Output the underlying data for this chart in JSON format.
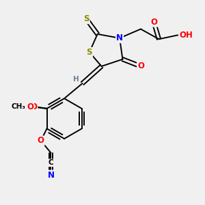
{
  "bg_color": "#f0f0f0",
  "atom_colors": {
    "S": "#8b8b00",
    "N": "#0000ff",
    "O": "#ff0000",
    "C": "#000000",
    "H": "#708090"
  },
  "bond_color": "#000000",
  "bond_width": 1.4,
  "font_size_atom": 8.5,
  "font_size_small": 7.5
}
